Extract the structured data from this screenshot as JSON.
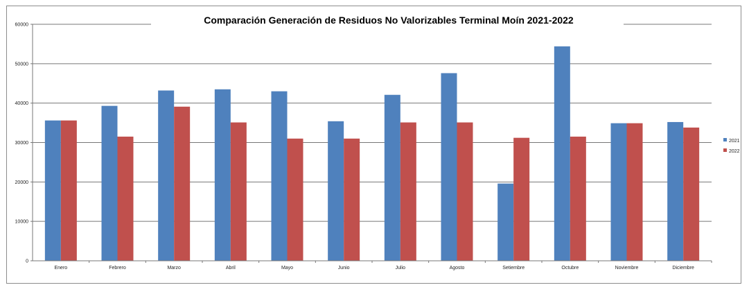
{
  "chart_data": {
    "type": "bar",
    "title": "Comparación Generación de Residuos No Valorizables Terminal  Moín 2021-2022",
    "xlabel": "",
    "ylabel": "",
    "ylim": [
      0,
      60000
    ],
    "yticks": [
      0,
      10000,
      20000,
      30000,
      40000,
      50000,
      60000
    ],
    "grid": true,
    "legend_position": "right",
    "categories": [
      "Enero",
      "Febrero",
      "Marzo",
      "Abril",
      "Mayo",
      "Junio",
      "Julio",
      "Agosto",
      "Setiembre",
      "Octubre",
      "Noviembre",
      "Diciembre"
    ],
    "series": [
      {
        "name": "2021",
        "color": "#4f81bd",
        "values": [
          35600,
          39300,
          43200,
          43500,
          43000,
          35400,
          42100,
          47600,
          19600,
          54400,
          34900,
          35200
        ]
      },
      {
        "name": "2022",
        "color": "#c0504d",
        "values": [
          35600,
          31500,
          39100,
          35100,
          31000,
          31000,
          35100,
          35100,
          31200,
          31500,
          34900,
          33800
        ]
      }
    ]
  }
}
